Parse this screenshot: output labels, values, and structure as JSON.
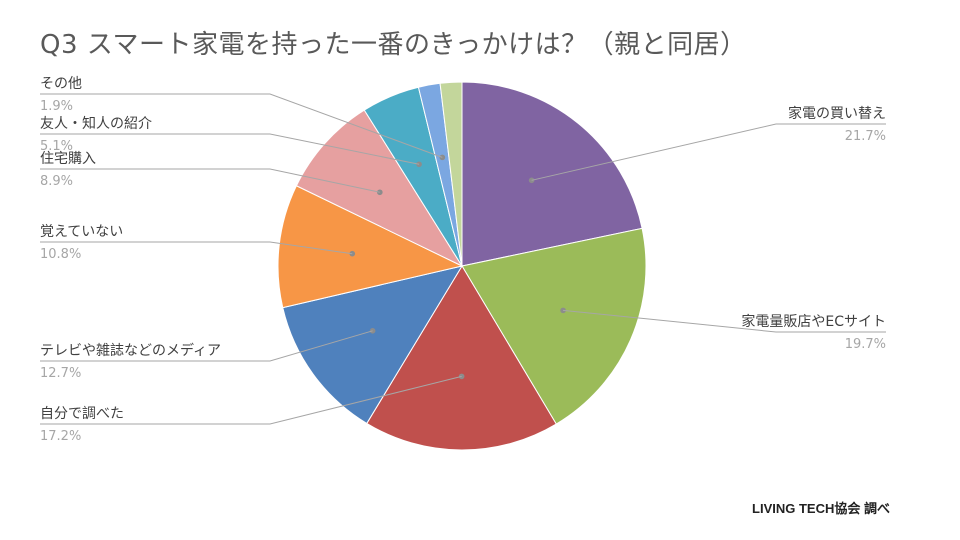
{
  "title": "Q3 スマート家電を持った一番のきっかけは？（親と同居）",
  "source": "LIVING TECH協会 調べ",
  "chart_data": {
    "type": "pie",
    "title": "Q3 スマート家電を持った一番のきっかけは？（親と同居）",
    "slices": [
      {
        "label": "家電の買い替え",
        "value": 21.7,
        "display": "21.7%",
        "color": "#8064a2"
      },
      {
        "label": "家電量販店やECサイト",
        "value": 19.7,
        "display": "19.7%",
        "color": "#9bbb59"
      },
      {
        "label": "自分で調べた",
        "value": 17.2,
        "display": "17.2%",
        "color": "#c0504d"
      },
      {
        "label": "テレビや雑誌などのメディア",
        "value": 12.7,
        "display": "12.7%",
        "color": "#4f81bd"
      },
      {
        "label": "覚えていない",
        "value": 10.8,
        "display": "10.8%",
        "color": "#f79646"
      },
      {
        "label": "住宅購入",
        "value": 8.9,
        "display": "8.9%",
        "color": "#e6a0a0"
      },
      {
        "label": "友人・知人の紹介",
        "value": 5.1,
        "display": "5.1%",
        "color": "#4bacc6"
      },
      {
        "label": "その他",
        "value": 1.9,
        "display": "1.9%",
        "color": "#7ba7e1"
      },
      {
        "label": "",
        "value": 1.9,
        "display": "",
        "color": "#c3d69b"
      }
    ],
    "legend": "none",
    "labels_position": "outside-with-leader-lines"
  }
}
